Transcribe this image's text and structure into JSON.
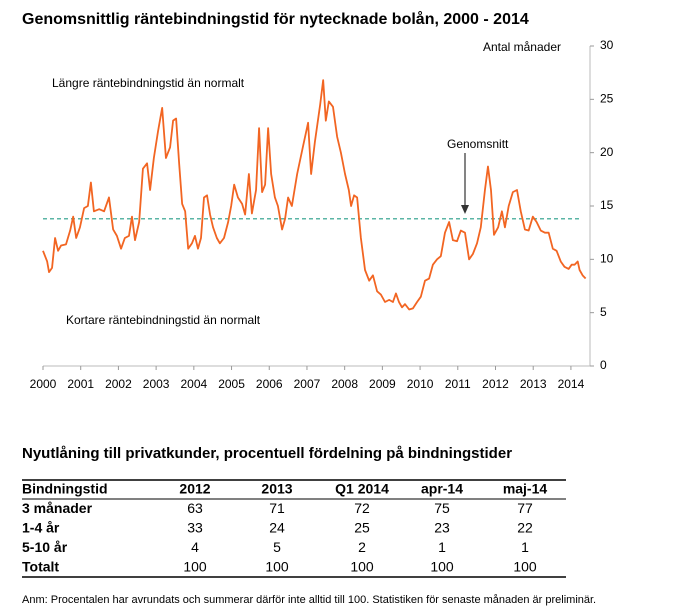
{
  "chart_data": {
    "type": "line",
    "title": "Genomsnittlig räntebindningstid för nytecknade bolån, 2000 - 2014",
    "y_axis_label": "Antal månader",
    "annotations": [
      "Längre räntebindningstid än normalt",
      "Kortare räntebindningstid än normalt",
      "Genomsnitt"
    ],
    "average": 13.8,
    "average_color": "#5bb5a5",
    "xlim": [
      2000,
      2014.4
    ],
    "xticks": [
      2000,
      2001,
      2002,
      2003,
      2004,
      2005,
      2006,
      2007,
      2008,
      2009,
      2010,
      2011,
      2012,
      2013,
      2014
    ],
    "ylim": [
      0,
      30
    ],
    "yticks": [
      0,
      5,
      10,
      15,
      20,
      25,
      30
    ],
    "y_axis_side": "right",
    "x": [
      2000.0,
      2000.11,
      2000.16,
      2000.24,
      2000.32,
      2000.4,
      2000.48,
      2000.61,
      2000.72,
      2000.8,
      2000.88,
      2000.98,
      2001.09,
      2001.19,
      2001.27,
      2001.35,
      2001.49,
      2001.62,
      2001.75,
      2001.86,
      2001.96,
      2002.07,
      2002.17,
      2002.28,
      2002.36,
      2002.44,
      2002.55,
      2002.65,
      2002.76,
      2002.84,
      2002.94,
      2003.05,
      2003.16,
      2003.26,
      2003.37,
      2003.45,
      2003.53,
      2003.61,
      2003.69,
      2003.77,
      2003.85,
      2003.95,
      2004.03,
      2004.11,
      2004.19,
      2004.27,
      2004.35,
      2004.43,
      2004.51,
      2004.61,
      2004.69,
      2004.8,
      2004.91,
      2004.99,
      2005.07,
      2005.17,
      2005.28,
      2005.36,
      2005.46,
      2005.54,
      2005.65,
      2005.73,
      2005.81,
      2005.89,
      2005.97,
      2006.05,
      2006.15,
      2006.23,
      2006.34,
      2006.42,
      2006.5,
      2006.6,
      2006.74,
      2006.89,
      2007.03,
      2007.11,
      2007.21,
      2007.35,
      2007.43,
      2007.5,
      2007.58,
      2007.69,
      2007.8,
      2007.9,
      2008.01,
      2008.11,
      2008.17,
      2008.25,
      2008.33,
      2008.43,
      2008.54,
      2008.65,
      2008.75,
      2008.86,
      2008.96,
      2009.07,
      2009.18,
      2009.28,
      2009.36,
      2009.44,
      2009.52,
      2009.6,
      2009.71,
      2009.81,
      2009.92,
      2010.02,
      2010.13,
      2010.24,
      2010.34,
      2010.45,
      2010.55,
      2010.66,
      2010.77,
      2010.87,
      2010.98,
      2011.08,
      2011.19,
      2011.3,
      2011.4,
      2011.51,
      2011.61,
      2011.72,
      2011.8,
      2011.88,
      2011.96,
      2012.07,
      2012.17,
      2012.25,
      2012.35,
      2012.46,
      2012.57,
      2012.67,
      2012.78,
      2012.88,
      2012.99,
      2013.09,
      2013.2,
      2013.31,
      2013.41,
      2013.52,
      2013.62,
      2013.73,
      2013.83,
      2013.94,
      2014.02,
      2014.1,
      2014.18,
      2014.23,
      2014.31,
      2014.39
    ],
    "series": [
      {
        "color": "#f26522",
        "values": [
          10.8,
          9.8,
          8.8,
          9.2,
          12.0,
          10.8,
          11.3,
          11.4,
          12.7,
          14.0,
          12.0,
          13.0,
          14.8,
          15.0,
          17.2,
          14.5,
          14.7,
          14.5,
          15.8,
          12.8,
          12.2,
          11.0,
          12.0,
          12.2,
          14.0,
          11.8,
          13.5,
          18.5,
          19.0,
          16.5,
          19.5,
          22.0,
          24.2,
          19.5,
          20.5,
          23.0,
          23.2,
          19.0,
          15.2,
          14.5,
          11.0,
          11.5,
          12.2,
          11.0,
          12.0,
          15.8,
          16.0,
          14.2,
          13.0,
          12.0,
          11.5,
          12.0,
          13.5,
          15.0,
          17.0,
          15.8,
          15.2,
          14.2,
          18.0,
          14.3,
          16.5,
          22.3,
          16.3,
          17.0,
          22.3,
          18.0,
          15.8,
          15.0,
          12.8,
          13.8,
          15.8,
          15.0,
          18.0,
          20.5,
          22.8,
          18.0,
          21.0,
          24.5,
          26.8,
          23.0,
          24.8,
          24.3,
          21.5,
          20.0,
          18.0,
          16.5,
          15.0,
          16.0,
          15.8,
          12.0,
          9.0,
          8.0,
          8.5,
          7.0,
          6.7,
          6.0,
          6.2,
          6.0,
          6.8,
          6.0,
          5.5,
          5.8,
          5.3,
          5.4,
          6.0,
          6.5,
          8.0,
          8.2,
          9.5,
          10.0,
          10.3,
          12.5,
          13.5,
          11.8,
          11.7,
          12.7,
          12.5,
          10.0,
          10.5,
          11.5,
          13.0,
          16.5,
          18.7,
          16.5,
          12.3,
          13.0,
          14.5,
          13.0,
          15.0,
          16.3,
          16.5,
          14.5,
          12.8,
          12.7,
          14.0,
          13.5,
          12.7,
          12.5,
          12.5,
          11.0,
          10.8,
          9.8,
          9.3,
          9.1,
          9.5,
          9.5,
          9.8,
          9.0,
          8.5,
          8.2
        ]
      }
    ]
  },
  "table": {
    "title": "Nyutlåning till privatkunder, procentuell fördelning på bindningstider",
    "columns": [
      "Bindningstid",
      "2012",
      "2013",
      "Q1 2014",
      "apr-14",
      "maj-14"
    ],
    "rows": [
      [
        "3 månader",
        63,
        71,
        72,
        75,
        77
      ],
      [
        "1-4 år",
        33,
        24,
        25,
        23,
        22
      ],
      [
        "5-10 år",
        4,
        5,
        2,
        1,
        1
      ],
      [
        "Totalt",
        100,
        100,
        100,
        100,
        100
      ]
    ],
    "note": "Anm: Procentalen har avrundats och summerar därför inte alltid till 100. Statistiken för senaste månaden är preliminär."
  }
}
